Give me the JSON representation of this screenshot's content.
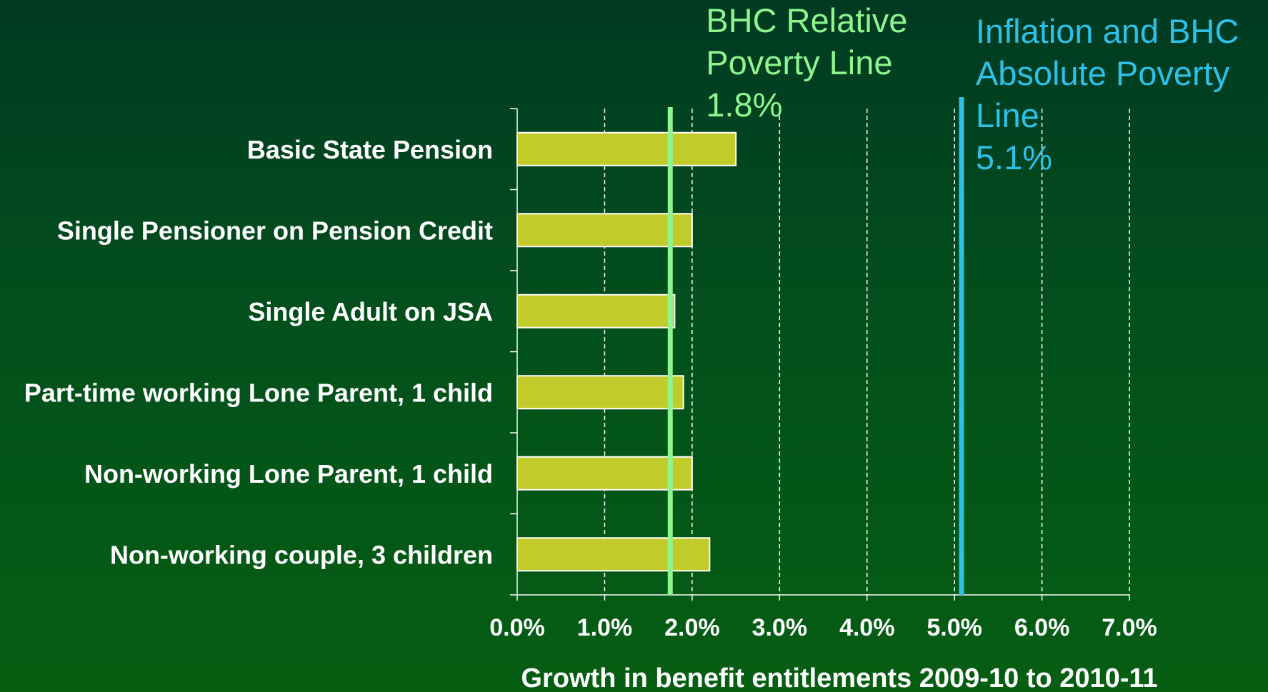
{
  "chart_data": {
    "type": "bar",
    "orientation": "horizontal",
    "categories": [
      "Basic State Pension",
      "Single Pensioner on Pension Credit",
      "Single Adult on JSA",
      "Part-time working Lone Parent, 1 child",
      "Non-working Lone Parent, 1 child",
      "Non-working couple, 3 children"
    ],
    "values": [
      2.5,
      2.0,
      1.8,
      1.9,
      2.0,
      2.2
    ],
    "xlabel": "Growth in benefit entitlements 2009-10 to 2010-11",
    "ylabel": "",
    "xlim": [
      0,
      7
    ],
    "x_ticks": [
      "0.0%",
      "1.0%",
      "2.0%",
      "3.0%",
      "4.0%",
      "5.0%",
      "6.0%",
      "7.0%"
    ],
    "grid": "vertical dashed",
    "reference_lines": [
      {
        "value": 1.75,
        "label_lines": [
          "BHC Relative",
          "Poverty Line",
          "1.8%"
        ],
        "color": "#8ff58f"
      },
      {
        "value": 5.08,
        "label_lines": [
          "Inflation and BHC",
          "Absolute Poverty",
          "Line",
          "5.1%"
        ],
        "color": "#2fc0e8"
      }
    ],
    "colors": {
      "bar_fill": "#c1cc2a",
      "bar_stroke": "#ffffff",
      "text": "#ffffff",
      "grid": "#ffffff"
    }
  }
}
